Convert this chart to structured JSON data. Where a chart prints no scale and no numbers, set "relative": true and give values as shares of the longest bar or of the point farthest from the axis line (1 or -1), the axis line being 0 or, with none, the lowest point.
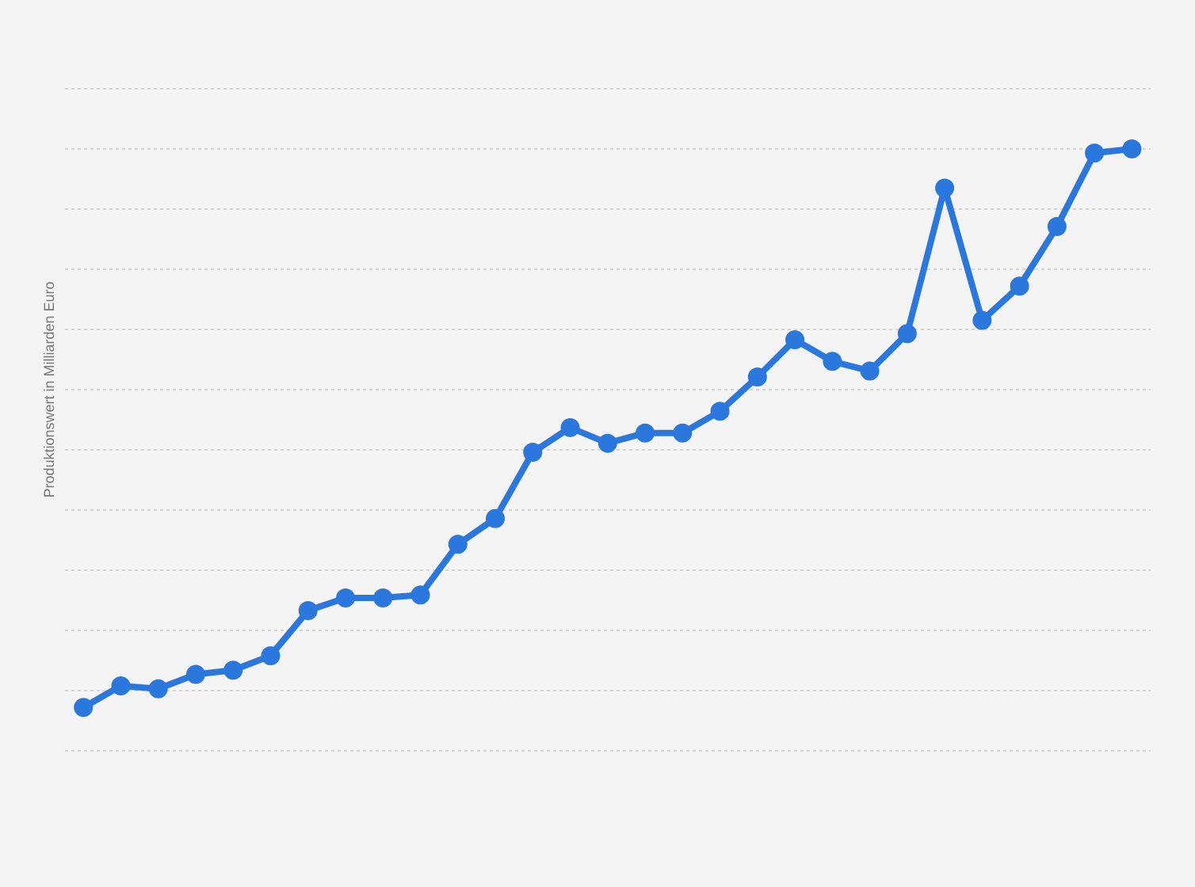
{
  "chart_data": {
    "type": "line",
    "ylabel": "Produktionswert in Milliarden Euro",
    "relative": true,
    "categories": [
      null,
      null,
      null,
      null,
      null,
      null,
      null,
      null,
      null,
      null,
      null,
      null,
      null,
      null,
      null,
      null,
      null,
      null,
      null,
      null,
      null,
      null,
      null,
      null,
      null,
      null,
      null,
      null,
      null
    ],
    "series": [
      {
        "color": "#2a77dd",
        "values": [
          0.072,
          0.108,
          0.103,
          0.127,
          0.134,
          0.158,
          0.233,
          0.254,
          0.254,
          0.259,
          0.343,
          0.386,
          0.496,
          0.537,
          0.511,
          0.528,
          0.528,
          0.564,
          0.621,
          0.683,
          0.647,
          0.631,
          0.693,
          0.935,
          0.715,
          0.772,
          0.871,
          0.993,
          1
        ]
      }
    ],
    "grid": "y",
    "legend": false,
    "marker": "circle",
    "line_style": "solid"
  }
}
